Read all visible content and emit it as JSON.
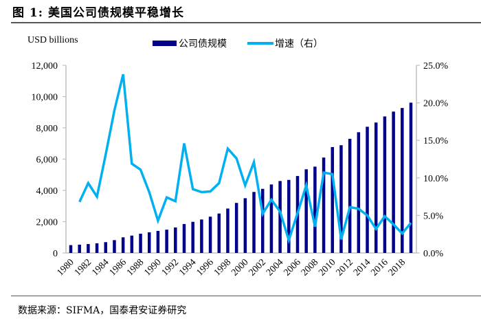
{
  "header": {
    "title": "图 1:  美国公司债规模平稳增长"
  },
  "footer": {
    "source": "数据来源：SIFMA，国泰君安证券研究"
  },
  "colors": {
    "bar": "#00008b",
    "line": "#00b0f0",
    "axis": "#bfbfbf"
  },
  "chart_data": {
    "type": "bar",
    "title": "美国公司债规模平稳增长",
    "ylabel": "USD billions",
    "y2label": "",
    "xlabel": "",
    "ylim": [
      0,
      12000
    ],
    "y2lim": [
      0,
      25
    ],
    "yticks": [
      "0",
      "2,000",
      "4,000",
      "6,000",
      "8,000",
      "10,000",
      "12,000"
    ],
    "y2ticks": [
      "0.0%",
      "5.0%",
      "10.0%",
      "15.0%",
      "20.0%",
      "25.0%"
    ],
    "xtick_labels": [
      "1980",
      "1982",
      "1984",
      "1986",
      "1988",
      "1990",
      "1992",
      "1994",
      "1996",
      "1998",
      "2000",
      "2002",
      "2004",
      "2006",
      "2008",
      "2010",
      "2012",
      "2014",
      "2016",
      "2018"
    ],
    "categories": [
      "1980",
      "1981",
      "1982",
      "1983",
      "1984",
      "1985",
      "1986",
      "1987",
      "1988",
      "1989",
      "1990",
      "1991",
      "1992",
      "1993",
      "1994",
      "1995",
      "1996",
      "1997",
      "1998",
      "1999",
      "2000",
      "2001",
      "2002",
      "2003",
      "2004",
      "2005",
      "2006",
      "2007",
      "2008",
      "2009",
      "2010",
      "2011",
      "2012",
      "2013",
      "2014",
      "2015",
      "2016",
      "2017",
      "2018",
      "2019"
    ],
    "legend": {
      "placement": "top-center",
      "entries": [
        "公司债规模",
        "增速（右）"
      ]
    },
    "grid": false,
    "series": [
      {
        "name": "公司债规模",
        "type": "bar",
        "axis": "left",
        "values": [
          500,
          530,
          570,
          615,
          690,
          820,
          1000,
          1110,
          1230,
          1320,
          1410,
          1490,
          1630,
          1850,
          1990,
          2140,
          2320,
          2520,
          2840,
          3200,
          3500,
          3900,
          4100,
          4380,
          4600,
          4670,
          4920,
          5350,
          5520,
          6100,
          6770,
          6890,
          7300,
          7720,
          8070,
          8340,
          8730,
          9040,
          9270,
          9610
        ]
      },
      {
        "name": "增速（右）",
        "type": "line",
        "axis": "right",
        "values": [
          null,
          6.8,
          9.3,
          7.5,
          13.1,
          19.0,
          23.8,
          11.9,
          11.1,
          8.1,
          4.3,
          7.4,
          6.9,
          14.6,
          8.5,
          8.1,
          8.2,
          9.3,
          13.9,
          12.6,
          9.0,
          12.1,
          5.2,
          7.1,
          5.5,
          1.7,
          5.3,
          9.0,
          3.5,
          10.7,
          10.5,
          1.8,
          6.1,
          5.9,
          5.0,
          3.2,
          4.9,
          3.8,
          2.6,
          4.0
        ]
      }
    ]
  }
}
